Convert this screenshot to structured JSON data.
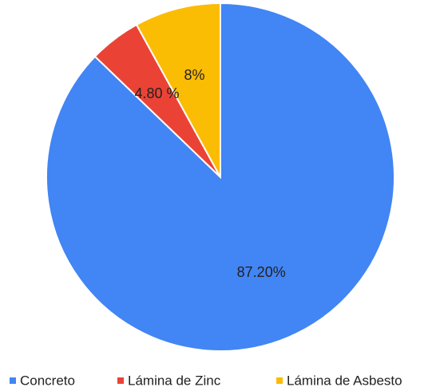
{
  "chart_data": {
    "type": "pie",
    "categories": [
      "Concreto",
      "Lámina de Zinc",
      "Lámina de Asbesto"
    ],
    "values": [
      87.2,
      4.8,
      8
    ],
    "value_labels": [
      "87.20%",
      "4.80 %",
      "8%"
    ],
    "colors": [
      "#4285f4",
      "#ea4335",
      "#fbbc04"
    ]
  }
}
